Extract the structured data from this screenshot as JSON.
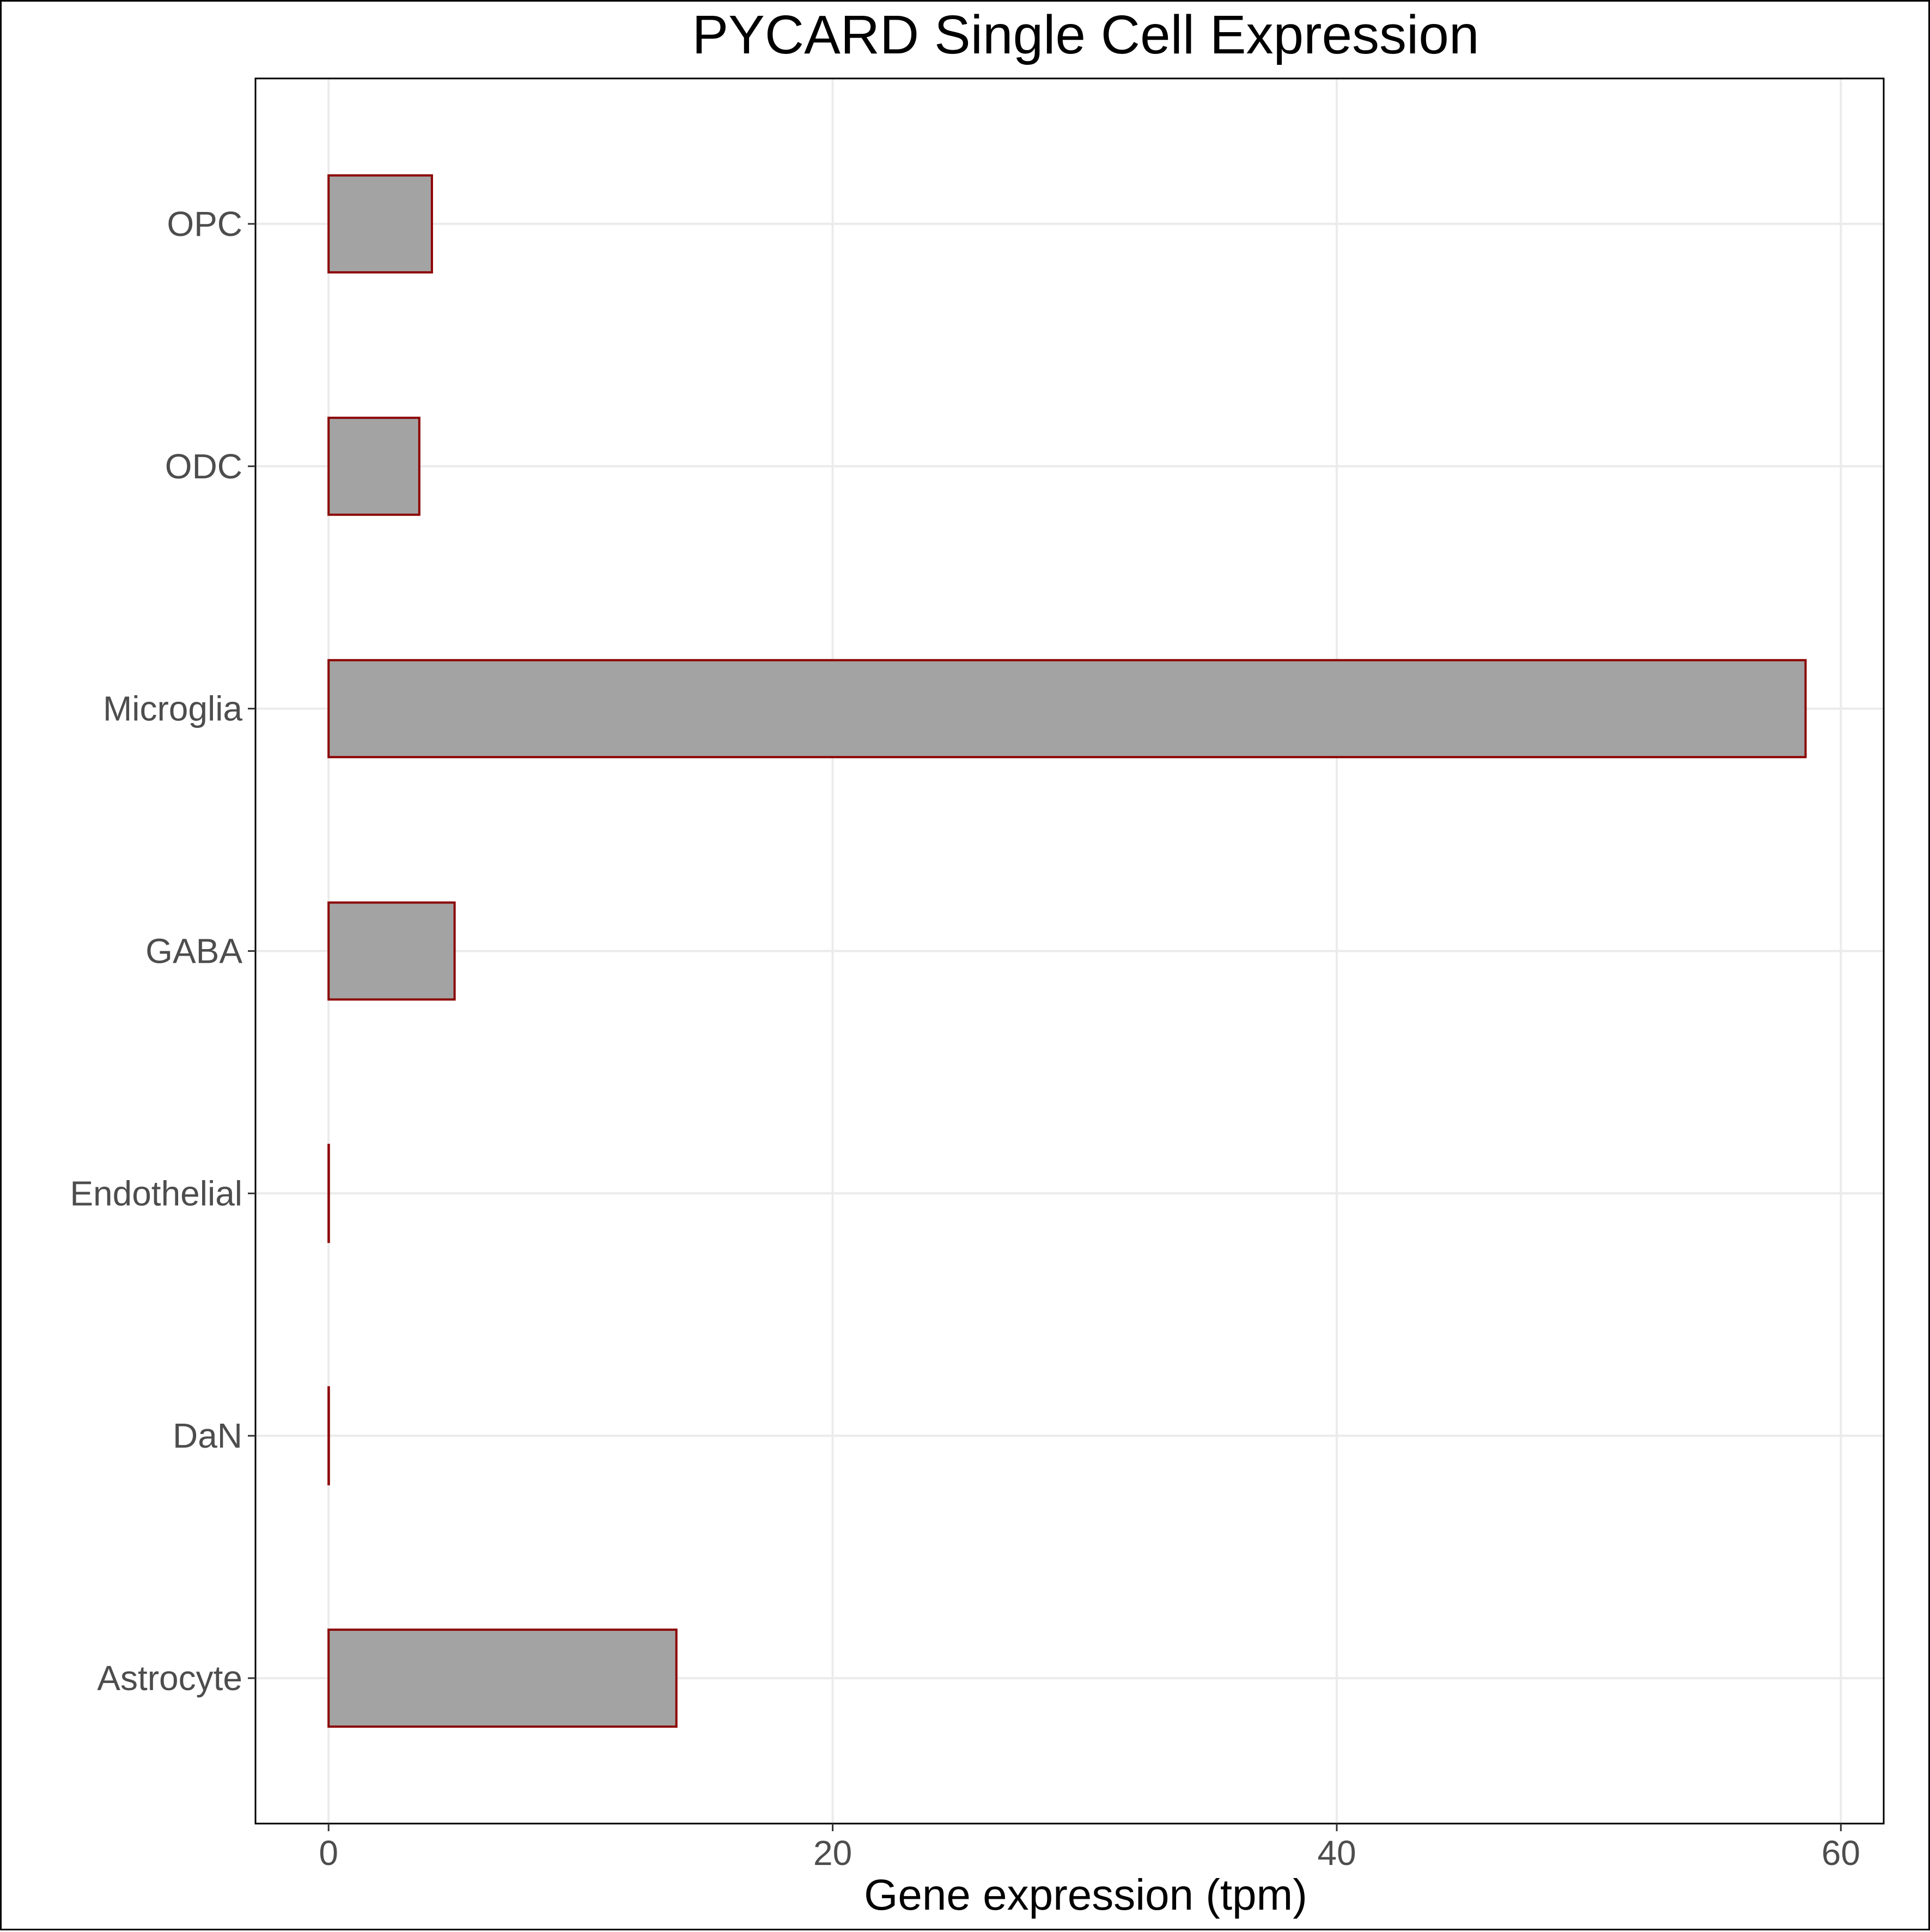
{
  "chart_data": {
    "type": "bar",
    "orientation": "horizontal",
    "title": "PYCARD Single Cell Expression",
    "xlabel": "Gene expression (tpm)",
    "ylabel": "",
    "categories": [
      "Astrocyte",
      "DaN",
      "Endothelial",
      "GABA",
      "Microglia",
      "ODC",
      "OPC"
    ],
    "values": [
      13.8,
      0.0,
      0.0,
      5.0,
      58.6,
      3.6,
      4.1
    ],
    "xlim": [
      -2.9,
      61.7
    ],
    "xticks": [
      0,
      20,
      40,
      60
    ],
    "grid": true,
    "legend": "none",
    "colors": {
      "bar_fill": "#a3a3a3",
      "bar_stroke": "#8b0000",
      "grid": "#ebebeb",
      "tick_text": "#4d4d4d"
    }
  }
}
